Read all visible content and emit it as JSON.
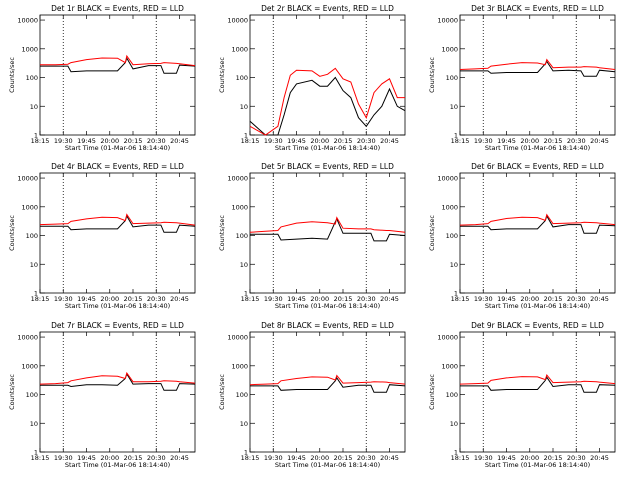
{
  "chart_data": {
    "type": "line",
    "layout": "3x3 grid",
    "shared": {
      "x_ticks": [
        "18:15",
        "19:30",
        "19:45",
        "20:00",
        "20:15",
        "20:30",
        "20:45"
      ],
      "xlabel": "Start Time (01-Mar-06 18:14:40)",
      "ylabel": "Counts/sec",
      "y_ticks": [
        "1",
        "10",
        "100",
        "1000",
        "10000"
      ],
      "y_scale": "log",
      "ylim": [
        1,
        15000
      ],
      "xlim_minutes_after_1915": [
        0,
        100
      ],
      "vlines_dotted": [
        "19:30",
        "20:30"
      ],
      "colors": {
        "events": "#000000",
        "lld": "#ff0000",
        "axes": "#000000"
      },
      "series_names": [
        "Events",
        "LLD"
      ]
    },
    "panels": [
      {
        "title": "Det 1r BLACK = Events, RED = LLD",
        "x": [
          0,
          10,
          18,
          20,
          30,
          40,
          50,
          55,
          56,
          60,
          70,
          78,
          80,
          88,
          90,
          100
        ],
        "events": [
          250,
          250,
          250,
          160,
          170,
          170,
          170,
          330,
          470,
          200,
          260,
          260,
          140,
          140,
          270,
          250
        ],
        "lld": [
          280,
          280,
          290,
          330,
          420,
          480,
          470,
          330,
          560,
          280,
          300,
          310,
          330,
          310,
          300,
          260
        ]
      },
      {
        "title": "Det 2r BLACK = Events, RED = LLD",
        "x": [
          0,
          10,
          18,
          22,
          26,
          30,
          40,
          45,
          50,
          55,
          60,
          65,
          70,
          75,
          80,
          85,
          90,
          95,
          100
        ],
        "events": [
          3,
          1,
          1,
          5,
          30,
          60,
          80,
          50,
          50,
          100,
          35,
          20,
          4,
          2,
          5,
          10,
          40,
          10,
          7
        ],
        "lld": [
          2,
          1,
          2,
          20,
          120,
          180,
          170,
          110,
          130,
          210,
          90,
          70,
          12,
          4,
          30,
          60,
          90,
          20,
          20
        ]
      },
      {
        "title": "Det 3r BLACK = Events, RED = LLD",
        "x": [
          0,
          10,
          18,
          20,
          30,
          40,
          50,
          55,
          56,
          60,
          70,
          78,
          80,
          88,
          90,
          100
        ],
        "events": [
          170,
          170,
          170,
          140,
          150,
          150,
          150,
          300,
          360,
          170,
          180,
          170,
          110,
          110,
          180,
          160
        ],
        "lld": [
          190,
          200,
          210,
          250,
          290,
          330,
          320,
          280,
          420,
          220,
          230,
          230,
          240,
          230,
          220,
          190
        ]
      },
      {
        "title": "Det 4r BLACK = Events, RED = LLD",
        "x": [
          0,
          10,
          18,
          20,
          30,
          40,
          50,
          55,
          56,
          60,
          70,
          78,
          80,
          88,
          90,
          100
        ],
        "events": [
          210,
          210,
          210,
          160,
          170,
          170,
          170,
          330,
          480,
          200,
          230,
          230,
          130,
          130,
          230,
          210
        ],
        "lld": [
          240,
          250,
          260,
          310,
          380,
          430,
          420,
          330,
          540,
          260,
          270,
          280,
          290,
          280,
          270,
          230
        ]
      },
      {
        "title": "Det 5r BLACK = Events, RED = LLD",
        "x": [
          0,
          10,
          18,
          20,
          30,
          40,
          50,
          55,
          56,
          60,
          70,
          78,
          80,
          88,
          90,
          100
        ],
        "events": [
          110,
          110,
          110,
          70,
          75,
          80,
          75,
          300,
          380,
          120,
          120,
          120,
          65,
          65,
          110,
          100
        ],
        "lld": [
          130,
          140,
          150,
          200,
          270,
          300,
          280,
          250,
          420,
          180,
          170,
          170,
          160,
          150,
          150,
          130
        ]
      },
      {
        "title": "Det 6r BLACK = Events, RED = LLD",
        "x": [
          0,
          10,
          18,
          20,
          30,
          40,
          50,
          55,
          56,
          60,
          70,
          78,
          80,
          88,
          90,
          100
        ],
        "events": [
          210,
          210,
          210,
          160,
          170,
          170,
          170,
          330,
          480,
          200,
          240,
          240,
          120,
          120,
          230,
          220
        ],
        "lld": [
          230,
          240,
          260,
          310,
          390,
          430,
          420,
          340,
          530,
          260,
          270,
          280,
          290,
          280,
          270,
          240
        ]
      },
      {
        "title": "Det 7r BLACK = Events, RED = LLD",
        "x": [
          0,
          10,
          18,
          20,
          30,
          40,
          50,
          55,
          56,
          60,
          70,
          78,
          80,
          88,
          90,
          100
        ],
        "events": [
          210,
          210,
          210,
          190,
          220,
          220,
          210,
          360,
          520,
          230,
          240,
          240,
          140,
          140,
          240,
          230
        ],
        "lld": [
          230,
          240,
          260,
          300,
          380,
          450,
          430,
          360,
          560,
          280,
          280,
          290,
          300,
          290,
          280,
          250
        ]
      },
      {
        "title": "Det 8r BLACK = Events, RED = LLD",
        "x": [
          0,
          10,
          18,
          20,
          30,
          40,
          50,
          55,
          56,
          60,
          70,
          78,
          80,
          88,
          90,
          100
        ],
        "events": [
          200,
          200,
          200,
          140,
          150,
          150,
          150,
          300,
          380,
          180,
          210,
          210,
          120,
          120,
          220,
          200
        ],
        "lld": [
          220,
          230,
          240,
          300,
          360,
          410,
          400,
          320,
          460,
          250,
          260,
          270,
          280,
          270,
          260,
          230
        ]
      },
      {
        "title": "Det 9r BLACK = Events, RED = LLD",
        "x": [
          0,
          10,
          18,
          20,
          30,
          40,
          50,
          55,
          56,
          60,
          70,
          78,
          80,
          88,
          90,
          100
        ],
        "events": [
          200,
          200,
          200,
          140,
          150,
          150,
          150,
          310,
          400,
          190,
          220,
          220,
          120,
          120,
          220,
          210
        ],
        "lld": [
          230,
          240,
          250,
          310,
          380,
          420,
          410,
          330,
          480,
          260,
          270,
          280,
          290,
          280,
          270,
          240
        ]
      }
    ]
  }
}
